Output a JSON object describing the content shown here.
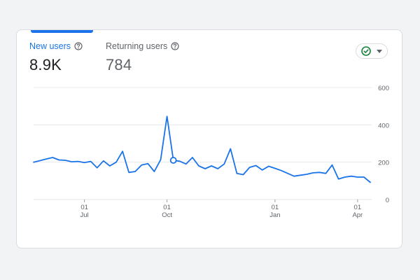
{
  "metrics": {
    "new_users": {
      "label": "New users",
      "value": "8.9K",
      "help_icon": "help-circle-icon"
    },
    "returning_users": {
      "label": "Returning users",
      "value": "784",
      "help_icon": "help-circle-icon"
    }
  },
  "status_chip": {
    "icon": "check-circle-icon",
    "dropdown_icon": "caret-down-icon"
  },
  "colors": {
    "accent": "#1a73e8",
    "status_green": "#188038",
    "grid": "#e8eaed",
    "text_secondary": "#5f6368"
  },
  "chart_data": {
    "type": "line",
    "title": "",
    "xlabel": "",
    "ylabel": "",
    "ylim": [
      0,
      600
    ],
    "grid": true,
    "y_axis_position": "right",
    "y_ticks": [
      "600",
      "400",
      "200",
      "0"
    ],
    "x_ticks": [
      {
        "day": "01",
        "month": "Jul",
        "index": 8
      },
      {
        "day": "01",
        "month": "Oct",
        "index": 21
      },
      {
        "day": "01",
        "month": "Jan",
        "index": 38
      },
      {
        "day": "01",
        "month": "Apr",
        "index": 51
      }
    ],
    "highlight_index": 22,
    "series": [
      {
        "values": [
          200,
          208,
          217,
          225,
          212,
          210,
          202,
          204,
          198,
          204,
          170,
          207,
          180,
          200,
          258,
          145,
          150,
          185,
          192,
          150,
          213,
          445,
          210,
          205,
          190,
          225,
          180,
          165,
          180,
          165,
          190,
          272,
          140,
          133,
          172,
          182,
          158,
          178,
          167,
          155,
          140,
          125,
          130,
          135,
          143,
          145,
          140,
          185,
          110,
          120,
          125,
          120,
          120,
          92
        ]
      }
    ]
  }
}
